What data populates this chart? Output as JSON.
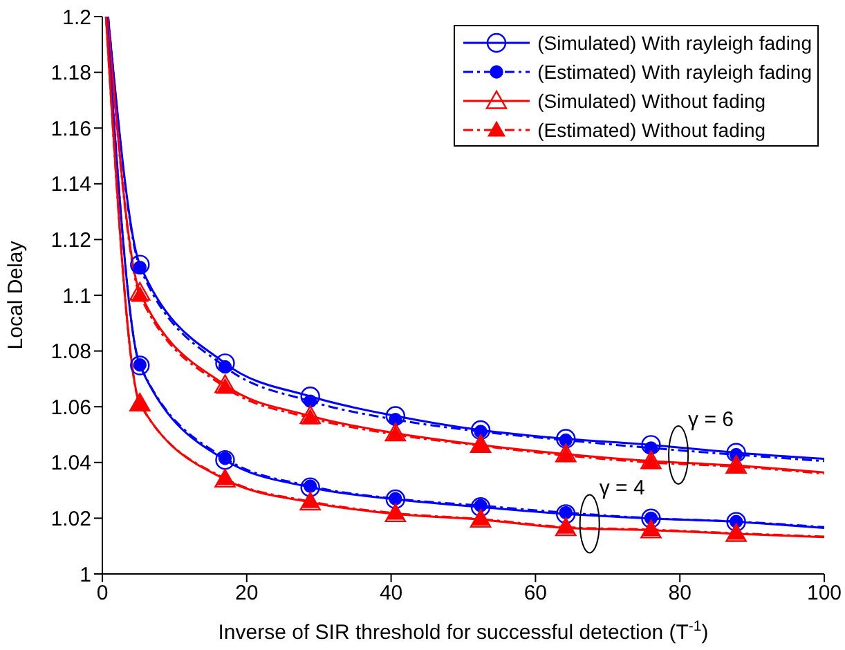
{
  "chart_data": {
    "type": "line",
    "xlabel": "Inverse of SIR threshold for successful detection (T$^{-1}$)",
    "ylabel": "Local Delay",
    "xlim": [
      0,
      100
    ],
    "ylim": [
      1,
      1.2
    ],
    "xticks": [
      0,
      20,
      40,
      60,
      80,
      100
    ],
    "yticks": [
      1,
      1.02,
      1.04,
      1.06,
      1.08,
      1.1,
      1.12,
      1.14,
      1.16,
      1.18,
      1.2
    ],
    "grid": false,
    "legend": "top right",
    "series": [
      {
        "name": "(Simulated) With rayleigh fading",
        "color": "#0000ff",
        "marker": "circle",
        "line_style": "solid",
        "x": [
          0.8,
          5.2,
          17,
          28.8,
          40.6,
          52.4,
          64.2,
          76,
          87.8,
          100
        ],
        "values": [
          1.2,
          1.111,
          1.0756,
          1.0637,
          1.0567,
          1.0516,
          1.0485,
          1.0463,
          1.0435,
          1.0413
        ]
      },
      {
        "name": "(Estimated) With rayleigh fading",
        "color": "#0000ff",
        "marker": "circle",
        "line_style": "dashed",
        "x": [
          0.8,
          5.2,
          17,
          28.8,
          40.6,
          52.4,
          64.2,
          76,
          87.8,
          100
        ],
        "values": [
          1.2,
          1.11,
          1.0743,
          1.062,
          1.0554,
          1.0511,
          1.048,
          1.0452,
          1.0428,
          1.0405
        ]
      },
      {
        "name": "(Simulated) Without fading",
        "color": "#ff0000",
        "marker": "triangle",
        "line_style": "solid",
        "x": [
          0.7,
          5.2,
          17,
          28.8,
          40.6,
          52.4,
          64.2,
          76,
          87.8,
          100
        ],
        "values": [
          1.2,
          1.101,
          1.0678,
          1.0567,
          1.0505,
          1.0463,
          1.043,
          1.0405,
          1.0389,
          1.0364
        ]
      },
      {
        "name": "(Estimated) Without fading",
        "color": "#ff0000",
        "marker": "triangle",
        "line_style": "dashed",
        "x": [
          0.7,
          5.2,
          17,
          28.8,
          40.6,
          52.4,
          64.2,
          76,
          87.8,
          100
        ],
        "values": [
          1.2,
          1.1,
          1.067,
          1.056,
          1.05,
          1.046,
          1.0425,
          1.04,
          1.0385,
          1.036
        ]
      },
      {
        "color": "#0000ff",
        "marker": "circle",
        "line_style": "solid",
        "x": [
          0.6,
          5.2,
          17,
          28.8,
          40.6,
          52.4,
          64.2,
          76,
          87.8,
          100
        ],
        "values": [
          1.2,
          1.0748,
          1.0409,
          1.0311,
          1.0268,
          1.024,
          1.0215,
          1.0199,
          1.0187,
          1.0165
        ]
      },
      {
        "color": "#0000ff",
        "marker": "circle",
        "line_style": "dashed",
        "x": [
          0.6,
          5.2,
          17,
          28.8,
          40.6,
          52.4,
          64.2,
          76,
          87.8,
          100
        ],
        "values": [
          1.2,
          1.075,
          1.0415,
          1.0315,
          1.027,
          1.0245,
          1.022,
          1.02,
          1.0188,
          1.0168
        ]
      },
      {
        "color": "#ff0000",
        "marker": "triangle",
        "line_style": "solid",
        "x": [
          0.5,
          5.2,
          17,
          28.8,
          40.6,
          52.4,
          64.2,
          76,
          87.8,
          100
        ],
        "values": [
          1.2,
          1.0612,
          1.0339,
          1.0257,
          1.0215,
          1.0195,
          1.0165,
          1.0157,
          1.0144,
          1.0132
        ]
      },
      {
        "color": "#ff0000",
        "marker": "triangle",
        "line_style": "dashed",
        "x": [
          0.5,
          5.2,
          17,
          28.8,
          40.6,
          52.4,
          64.2,
          76,
          87.8,
          100
        ],
        "values": [
          1.2,
          1.061,
          1.0342,
          1.026,
          1.0218,
          1.0197,
          1.0168,
          1.0159,
          1.0146,
          1.0134
        ]
      }
    ],
    "annotations": [
      {
        "text": "γ = 6",
        "x": 79.8,
        "y": 1.0427
      },
      {
        "text": "γ = 4",
        "x": 67.5,
        "y": 1.018
      }
    ]
  }
}
